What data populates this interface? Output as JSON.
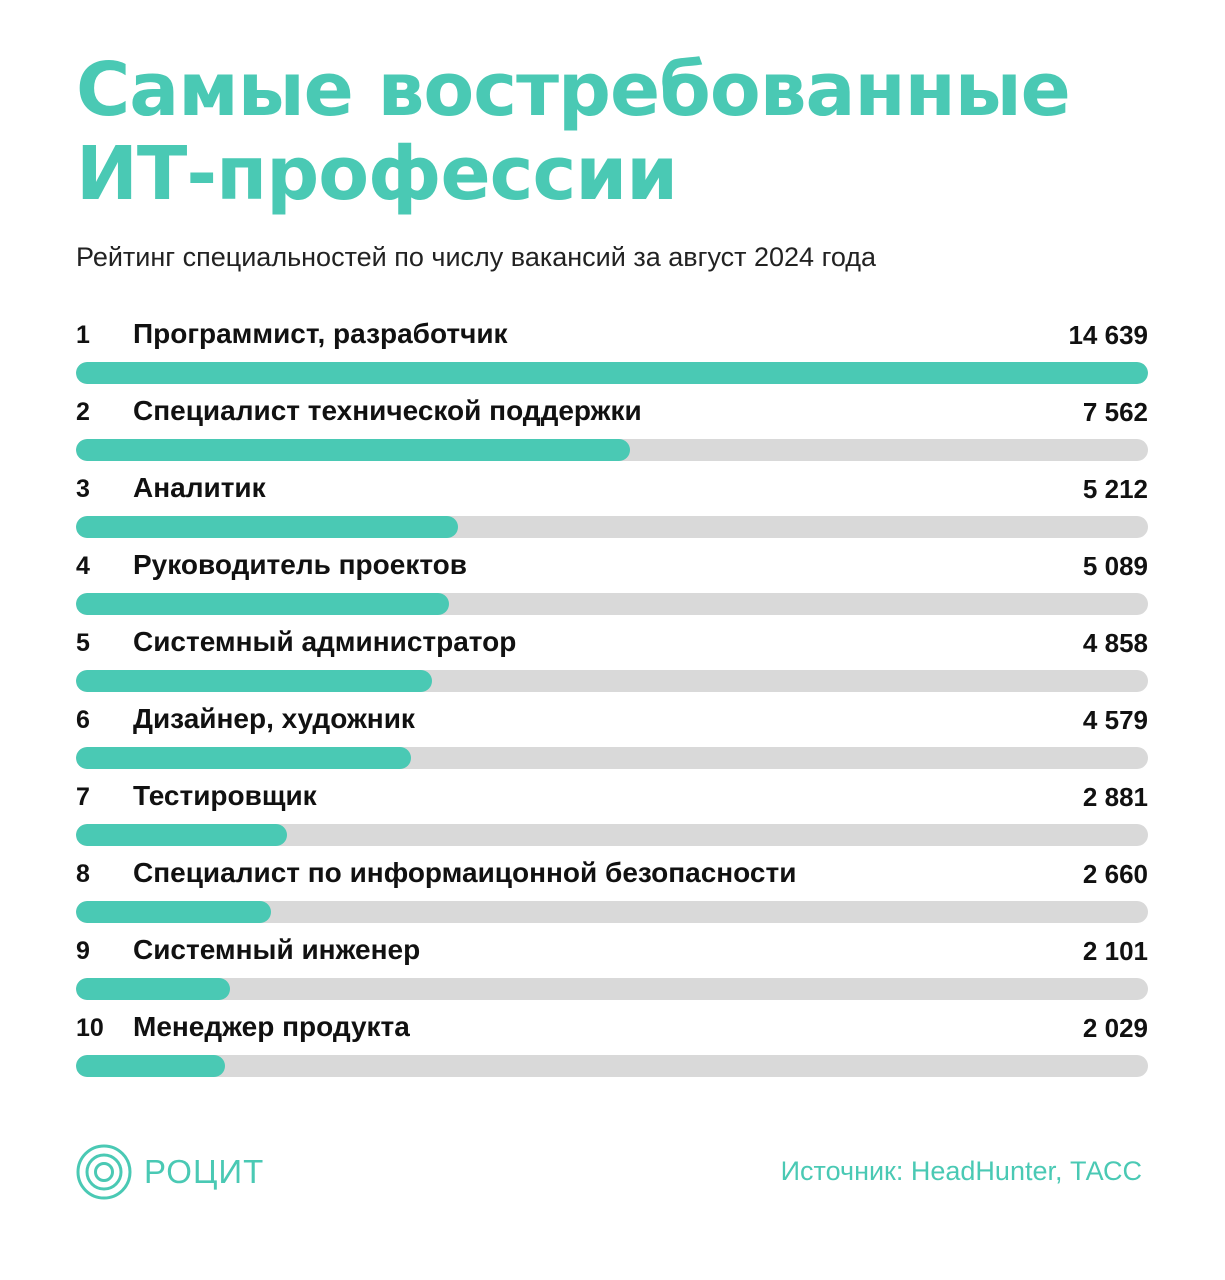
{
  "header": {
    "title_line1": "Самые востребованные",
    "title_line2": "ИТ-профессии",
    "subtitle": "Рейтинг специальностей по числу вакансий за август 2024 года"
  },
  "colors": {
    "accent": "#4ac9b4",
    "track": "#d9d9d9",
    "text": "#111111"
  },
  "chart_data": {
    "type": "bar",
    "orientation": "horizontal",
    "categories": [
      "Программист, разработчик",
      "Специалист технической поддержки",
      "Аналитик",
      "Руководитель проектов",
      "Системный администратор",
      "Дизайнер, художник",
      "Тестировщик",
      "Специалист по информаицонной безопасности",
      "Системный инженер",
      "Менеджер продукта"
    ],
    "ranks": [
      "1",
      "2",
      "3",
      "4",
      "5",
      "6",
      "7",
      "8",
      "9",
      "10"
    ],
    "values": [
      14639,
      7562,
      5212,
      5089,
      4858,
      4579,
      2881,
      2660,
      2101,
      2029
    ],
    "value_labels": [
      "14 639",
      "7 562",
      "5 212",
      "5 089",
      "4 858",
      "4 579",
      "2 881",
      "2 660",
      "2 101",
      "2 029"
    ],
    "xlim": [
      0,
      14639
    ],
    "grid": false
  },
  "footer": {
    "logo_text": "РОЦИТ",
    "logo_icon": "concentric-circles-icon",
    "source": "Источник: HeadHunter, ТАСС"
  }
}
